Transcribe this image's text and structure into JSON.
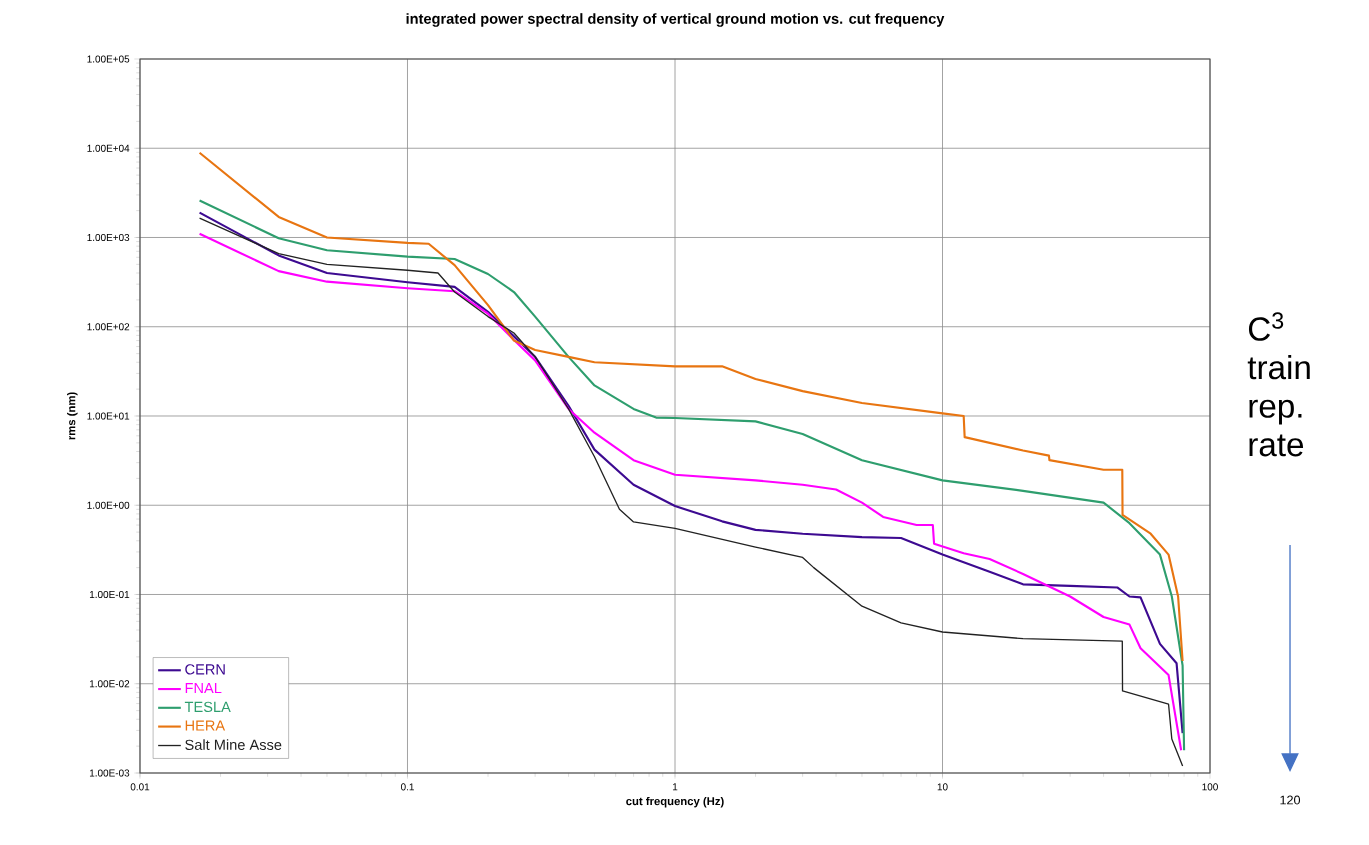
{
  "chart_data": {
    "type": "line",
    "title": "integrated power spectral density of vertical ground motion vs. cut frequency",
    "xlabel": "cut frequency (Hz)",
    "ylabel": "rms  (nm)",
    "log": "xy",
    "grid": true,
    "legend": "bottom left",
    "xlim": [
      0.01,
      100
    ],
    "ylim": [
      0.001,
      100000
    ],
    "xticks": [
      0.01,
      0.1,
      1,
      10,
      100
    ],
    "yticks": [
      {
        "value": 0.001,
        "label": "1.00E-03"
      },
      {
        "value": 0.01,
        "label": "1.00E-02"
      },
      {
        "value": 0.1,
        "label": "1.00E-01"
      },
      {
        "value": 1,
        "label": "1.00E+00"
      },
      {
        "value": 10,
        "label": "1.00E+01"
      },
      {
        "value": 100,
        "label": "1.00E+02"
      },
      {
        "value": 1000,
        "label": "1.00E+03"
      },
      {
        "value": 10000,
        "label": "1.00E+04"
      },
      {
        "value": 100000,
        "label": "1.00E+05"
      }
    ],
    "annotations": [
      "C$^{3}$ train rep. rate",
      "120"
    ],
    "series": [
      {
        "name": "CERN",
        "color": "#3d0a91",
        "x": [
          0.0167,
          0.033,
          0.05,
          0.1,
          0.15,
          0.2,
          0.25,
          0.3,
          0.4,
          0.5,
          0.7,
          1,
          1.5,
          2,
          3,
          5,
          7,
          10,
          15,
          20,
          30,
          45,
          50,
          55,
          65,
          75,
          79
        ],
        "values": [
          1900,
          630,
          400,
          315,
          280,
          147,
          78,
          46,
          13,
          4.2,
          1.7,
          0.98,
          0.66,
          0.53,
          0.48,
          0.44,
          0.43,
          0.28,
          0.18,
          0.13,
          0.125,
          0.12,
          0.095,
          0.093,
          0.028,
          0.017,
          0.0028
        ]
      },
      {
        "name": "FNAL",
        "color": "#ff00ff",
        "x": [
          0.0167,
          0.033,
          0.05,
          0.1,
          0.15,
          0.2,
          0.25,
          0.3,
          0.4,
          0.5,
          0.7,
          1,
          2,
          3,
          4,
          5,
          6,
          8,
          9.2,
          9.3,
          12,
          15,
          20,
          30,
          40,
          50,
          55,
          70,
          78
        ],
        "values": [
          1100,
          420,
          320,
          270,
          250,
          140,
          71,
          42,
          12,
          6.5,
          3.2,
          2.2,
          1.9,
          1.7,
          1.5,
          1.07,
          0.74,
          0.6,
          0.6,
          0.37,
          0.29,
          0.25,
          0.17,
          0.095,
          0.056,
          0.046,
          0.025,
          0.0125,
          0.0018
        ]
      },
      {
        "name": "TESLA",
        "color": "#2e9e6e",
        "x": [
          0.0167,
          0.033,
          0.05,
          0.1,
          0.15,
          0.2,
          0.25,
          0.3,
          0.4,
          0.5,
          0.7,
          0.85,
          1,
          2,
          3,
          5,
          10,
          20,
          40,
          50,
          65,
          72,
          79,
          80
        ],
        "values": [
          2600,
          980,
          720,
          610,
          575,
          390,
          245,
          130,
          46,
          22,
          12,
          9.6,
          9.5,
          8.7,
          6.3,
          3.2,
          1.9,
          1.45,
          1.07,
          0.63,
          0.28,
          0.095,
          0.016,
          0.0018
        ]
      },
      {
        "name": "HERA",
        "color": "#e87511",
        "x": [
          0.0167,
          0.033,
          0.05,
          0.1,
          0.12,
          0.15,
          0.2,
          0.25,
          0.3,
          0.4,
          0.5,
          1,
          1.5,
          2,
          3,
          5,
          10,
          12,
          12.1,
          20,
          25,
          25.1,
          40,
          47,
          47.1,
          60,
          70,
          76,
          79
        ],
        "values": [
          8900,
          1700,
          1000,
          870,
          850,
          490,
          175,
          70,
          55,
          46,
          40,
          36,
          36,
          26,
          19,
          14,
          10.7,
          10,
          5.8,
          4.1,
          3.6,
          3.2,
          2.5,
          2.5,
          0.78,
          0.48,
          0.28,
          0.095,
          0.018
        ]
      },
      {
        "name": "Salt Mine Asse",
        "color": "#222222",
        "x": [
          0.0167,
          0.033,
          0.05,
          0.1,
          0.13,
          0.15,
          0.2,
          0.25,
          0.3,
          0.4,
          0.5,
          0.62,
          0.7,
          1,
          2,
          3,
          3.3,
          5,
          7,
          10,
          20,
          47,
          47.1,
          70,
          72,
          79
        ],
        "values": [
          1650,
          660,
          500,
          430,
          400,
          245,
          130,
          85,
          46,
          12,
          3.5,
          0.9,
          0.65,
          0.55,
          0.34,
          0.26,
          0.2,
          0.074,
          0.048,
          0.038,
          0.032,
          0.03,
          0.0083,
          0.0059,
          0.0024,
          0.0012
        ]
      }
    ]
  }
}
